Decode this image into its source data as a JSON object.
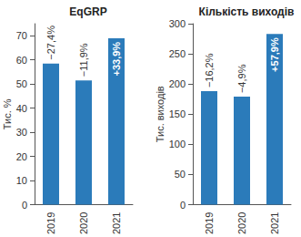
{
  "chart_data": [
    {
      "type": "bar",
      "title": "EqGRP",
      "y_label": "Тис. %",
      "categories": [
        "2019",
        "2020",
        "2021"
      ],
      "values": [
        58.5,
        51.5,
        69
      ],
      "annotations": [
        "−27,4%",
        "−11,9%",
        "+33,9%"
      ],
      "color": "#2b7bba",
      "ylim": [
        0,
        75
      ],
      "yticks": [
        0,
        10,
        20,
        30,
        40,
        50,
        60,
        70
      ]
    },
    {
      "type": "bar",
      "title": "Кількість виходів",
      "y_label": "Тис. виходів",
      "categories": [
        "2019",
        "2020",
        "2021"
      ],
      "values": [
        188,
        179,
        283
      ],
      "annotations": [
        "−16,2%",
        "−4,9%",
        "+57,9%"
      ],
      "color": "#2b7bba",
      "ylim": [
        0,
        300
      ],
      "yticks": [
        0,
        50,
        100,
        150,
        200,
        250,
        300
      ]
    }
  ]
}
